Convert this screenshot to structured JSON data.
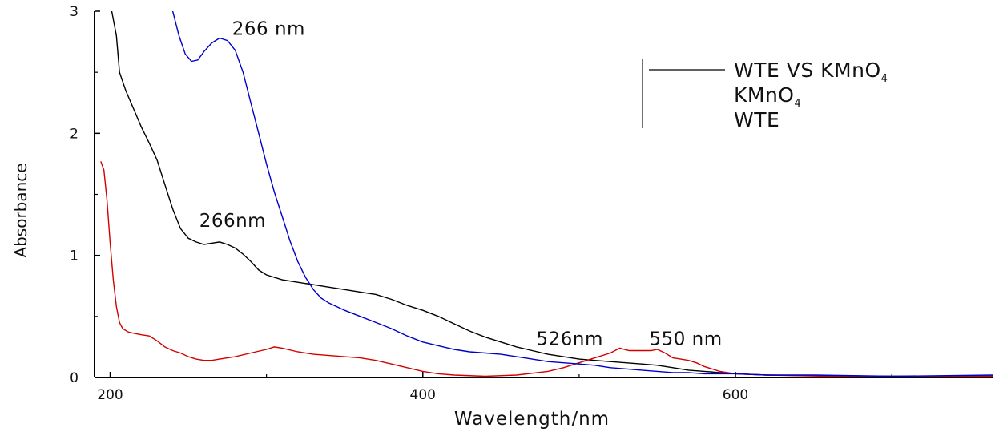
{
  "chart_data": {
    "type": "line",
    "xlabel": "Wavelength/nm",
    "ylabel": "Absorbance",
    "xlim": [
      190,
      765
    ],
    "ylim": [
      0,
      3
    ],
    "xticks": [
      200,
      400,
      600
    ],
    "yticks": [
      0,
      1,
      2,
      3
    ],
    "legend_position": "top-right",
    "series": [
      {
        "name": "WTE VS KMnO4",
        "name_main": "WTE VS KMnO",
        "name_sub": "4",
        "color": "#000000",
        "points": [
          [
            201,
            3.0
          ],
          [
            204,
            2.8
          ],
          [
            206,
            2.5
          ],
          [
            210,
            2.35
          ],
          [
            215,
            2.2
          ],
          [
            220,
            2.05
          ],
          [
            225,
            1.92
          ],
          [
            230,
            1.78
          ],
          [
            235,
            1.58
          ],
          [
            240,
            1.38
          ],
          [
            245,
            1.22
          ],
          [
            250,
            1.14
          ],
          [
            255,
            1.11
          ],
          [
            260,
            1.09
          ],
          [
            265,
            1.1
          ],
          [
            270,
            1.11
          ],
          [
            275,
            1.09
          ],
          [
            280,
            1.06
          ],
          [
            285,
            1.01
          ],
          [
            290,
            0.95
          ],
          [
            295,
            0.88
          ],
          [
            300,
            0.84
          ],
          [
            310,
            0.8
          ],
          [
            320,
            0.78
          ],
          [
            330,
            0.76
          ],
          [
            340,
            0.74
          ],
          [
            350,
            0.72
          ],
          [
            360,
            0.7
          ],
          [
            370,
            0.68
          ],
          [
            380,
            0.64
          ],
          [
            390,
            0.59
          ],
          [
            400,
            0.55
          ],
          [
            410,
            0.5
          ],
          [
            420,
            0.44
          ],
          [
            430,
            0.38
          ],
          [
            440,
            0.33
          ],
          [
            450,
            0.29
          ],
          [
            460,
            0.25
          ],
          [
            470,
            0.22
          ],
          [
            480,
            0.19
          ],
          [
            490,
            0.17
          ],
          [
            500,
            0.15
          ],
          [
            510,
            0.14
          ],
          [
            520,
            0.13
          ],
          [
            530,
            0.12
          ],
          [
            540,
            0.11
          ],
          [
            550,
            0.1
          ],
          [
            560,
            0.08
          ],
          [
            570,
            0.06
          ],
          [
            580,
            0.05
          ],
          [
            590,
            0.04
          ],
          [
            600,
            0.03
          ],
          [
            620,
            0.02
          ],
          [
            650,
            0.015
          ],
          [
            700,
            0.01
          ],
          [
            765,
            0.01
          ]
        ]
      },
      {
        "name": "KMnO4",
        "name_main": "KMnO",
        "name_sub": "4",
        "color": "#d40000",
        "points": [
          [
            194,
            1.77
          ],
          [
            196,
            1.7
          ],
          [
            198,
            1.45
          ],
          [
            200,
            1.1
          ],
          [
            202,
            0.8
          ],
          [
            204,
            0.58
          ],
          [
            206,
            0.45
          ],
          [
            208,
            0.4
          ],
          [
            212,
            0.37
          ],
          [
            216,
            0.36
          ],
          [
            220,
            0.35
          ],
          [
            225,
            0.34
          ],
          [
            230,
            0.3
          ],
          [
            235,
            0.25
          ],
          [
            240,
            0.22
          ],
          [
            245,
            0.2
          ],
          [
            250,
            0.17
          ],
          [
            255,
            0.15
          ],
          [
            260,
            0.14
          ],
          [
            265,
            0.14
          ],
          [
            270,
            0.15
          ],
          [
            280,
            0.17
          ],
          [
            290,
            0.2
          ],
          [
            300,
            0.23
          ],
          [
            305,
            0.25
          ],
          [
            310,
            0.24
          ],
          [
            320,
            0.21
          ],
          [
            330,
            0.19
          ],
          [
            340,
            0.18
          ],
          [
            350,
            0.17
          ],
          [
            360,
            0.16
          ],
          [
            370,
            0.14
          ],
          [
            380,
            0.11
          ],
          [
            390,
            0.08
          ],
          [
            400,
            0.05
          ],
          [
            410,
            0.03
          ],
          [
            420,
            0.02
          ],
          [
            440,
            0.01
          ],
          [
            460,
            0.02
          ],
          [
            480,
            0.05
          ],
          [
            490,
            0.08
          ],
          [
            500,
            0.12
          ],
          [
            510,
            0.16
          ],
          [
            520,
            0.2
          ],
          [
            526,
            0.24
          ],
          [
            532,
            0.22
          ],
          [
            540,
            0.22
          ],
          [
            546,
            0.22
          ],
          [
            550,
            0.23
          ],
          [
            555,
            0.2
          ],
          [
            560,
            0.16
          ],
          [
            565,
            0.15
          ],
          [
            570,
            0.14
          ],
          [
            575,
            0.12
          ],
          [
            580,
            0.09
          ],
          [
            590,
            0.05
          ],
          [
            600,
            0.03
          ],
          [
            620,
            0.02
          ],
          [
            660,
            0.01
          ],
          [
            765,
            0.01
          ]
        ]
      },
      {
        "name": "WTE",
        "name_main": "WTE",
        "name_sub": "",
        "color": "#0000cc",
        "points": [
          [
            240,
            3.0
          ],
          [
            244,
            2.8
          ],
          [
            248,
            2.65
          ],
          [
            252,
            2.59
          ],
          [
            256,
            2.6
          ],
          [
            260,
            2.67
          ],
          [
            265,
            2.74
          ],
          [
            270,
            2.78
          ],
          [
            275,
            2.76
          ],
          [
            280,
            2.68
          ],
          [
            285,
            2.5
          ],
          [
            290,
            2.25
          ],
          [
            295,
            2.0
          ],
          [
            300,
            1.75
          ],
          [
            305,
            1.52
          ],
          [
            310,
            1.32
          ],
          [
            315,
            1.12
          ],
          [
            320,
            0.95
          ],
          [
            325,
            0.82
          ],
          [
            330,
            0.72
          ],
          [
            335,
            0.65
          ],
          [
            340,
            0.61
          ],
          [
            350,
            0.55
          ],
          [
            360,
            0.5
          ],
          [
            370,
            0.45
          ],
          [
            380,
            0.4
          ],
          [
            390,
            0.34
          ],
          [
            400,
            0.29
          ],
          [
            410,
            0.26
          ],
          [
            420,
            0.23
          ],
          [
            430,
            0.21
          ],
          [
            440,
            0.2
          ],
          [
            450,
            0.19
          ],
          [
            460,
            0.17
          ],
          [
            470,
            0.15
          ],
          [
            480,
            0.13
          ],
          [
            490,
            0.12
          ],
          [
            500,
            0.11
          ],
          [
            510,
            0.1
          ],
          [
            520,
            0.08
          ],
          [
            530,
            0.07
          ],
          [
            540,
            0.06
          ],
          [
            550,
            0.05
          ],
          [
            560,
            0.04
          ],
          [
            570,
            0.04
          ],
          [
            580,
            0.03
          ],
          [
            600,
            0.03
          ],
          [
            620,
            0.02
          ],
          [
            650,
            0.02
          ],
          [
            700,
            0.01
          ],
          [
            765,
            0.02
          ]
        ]
      }
    ],
    "annotations": [
      {
        "text": "266 nm",
        "x": 277,
        "y": 2.78
      },
      {
        "text": "266nm",
        "x": 258,
        "y": 1.17
      },
      {
        "text": "526nm",
        "x": 487,
        "y": 0.2
      },
      {
        "text": "550 nm",
        "x": 550,
        "y": 0.2
      }
    ]
  }
}
